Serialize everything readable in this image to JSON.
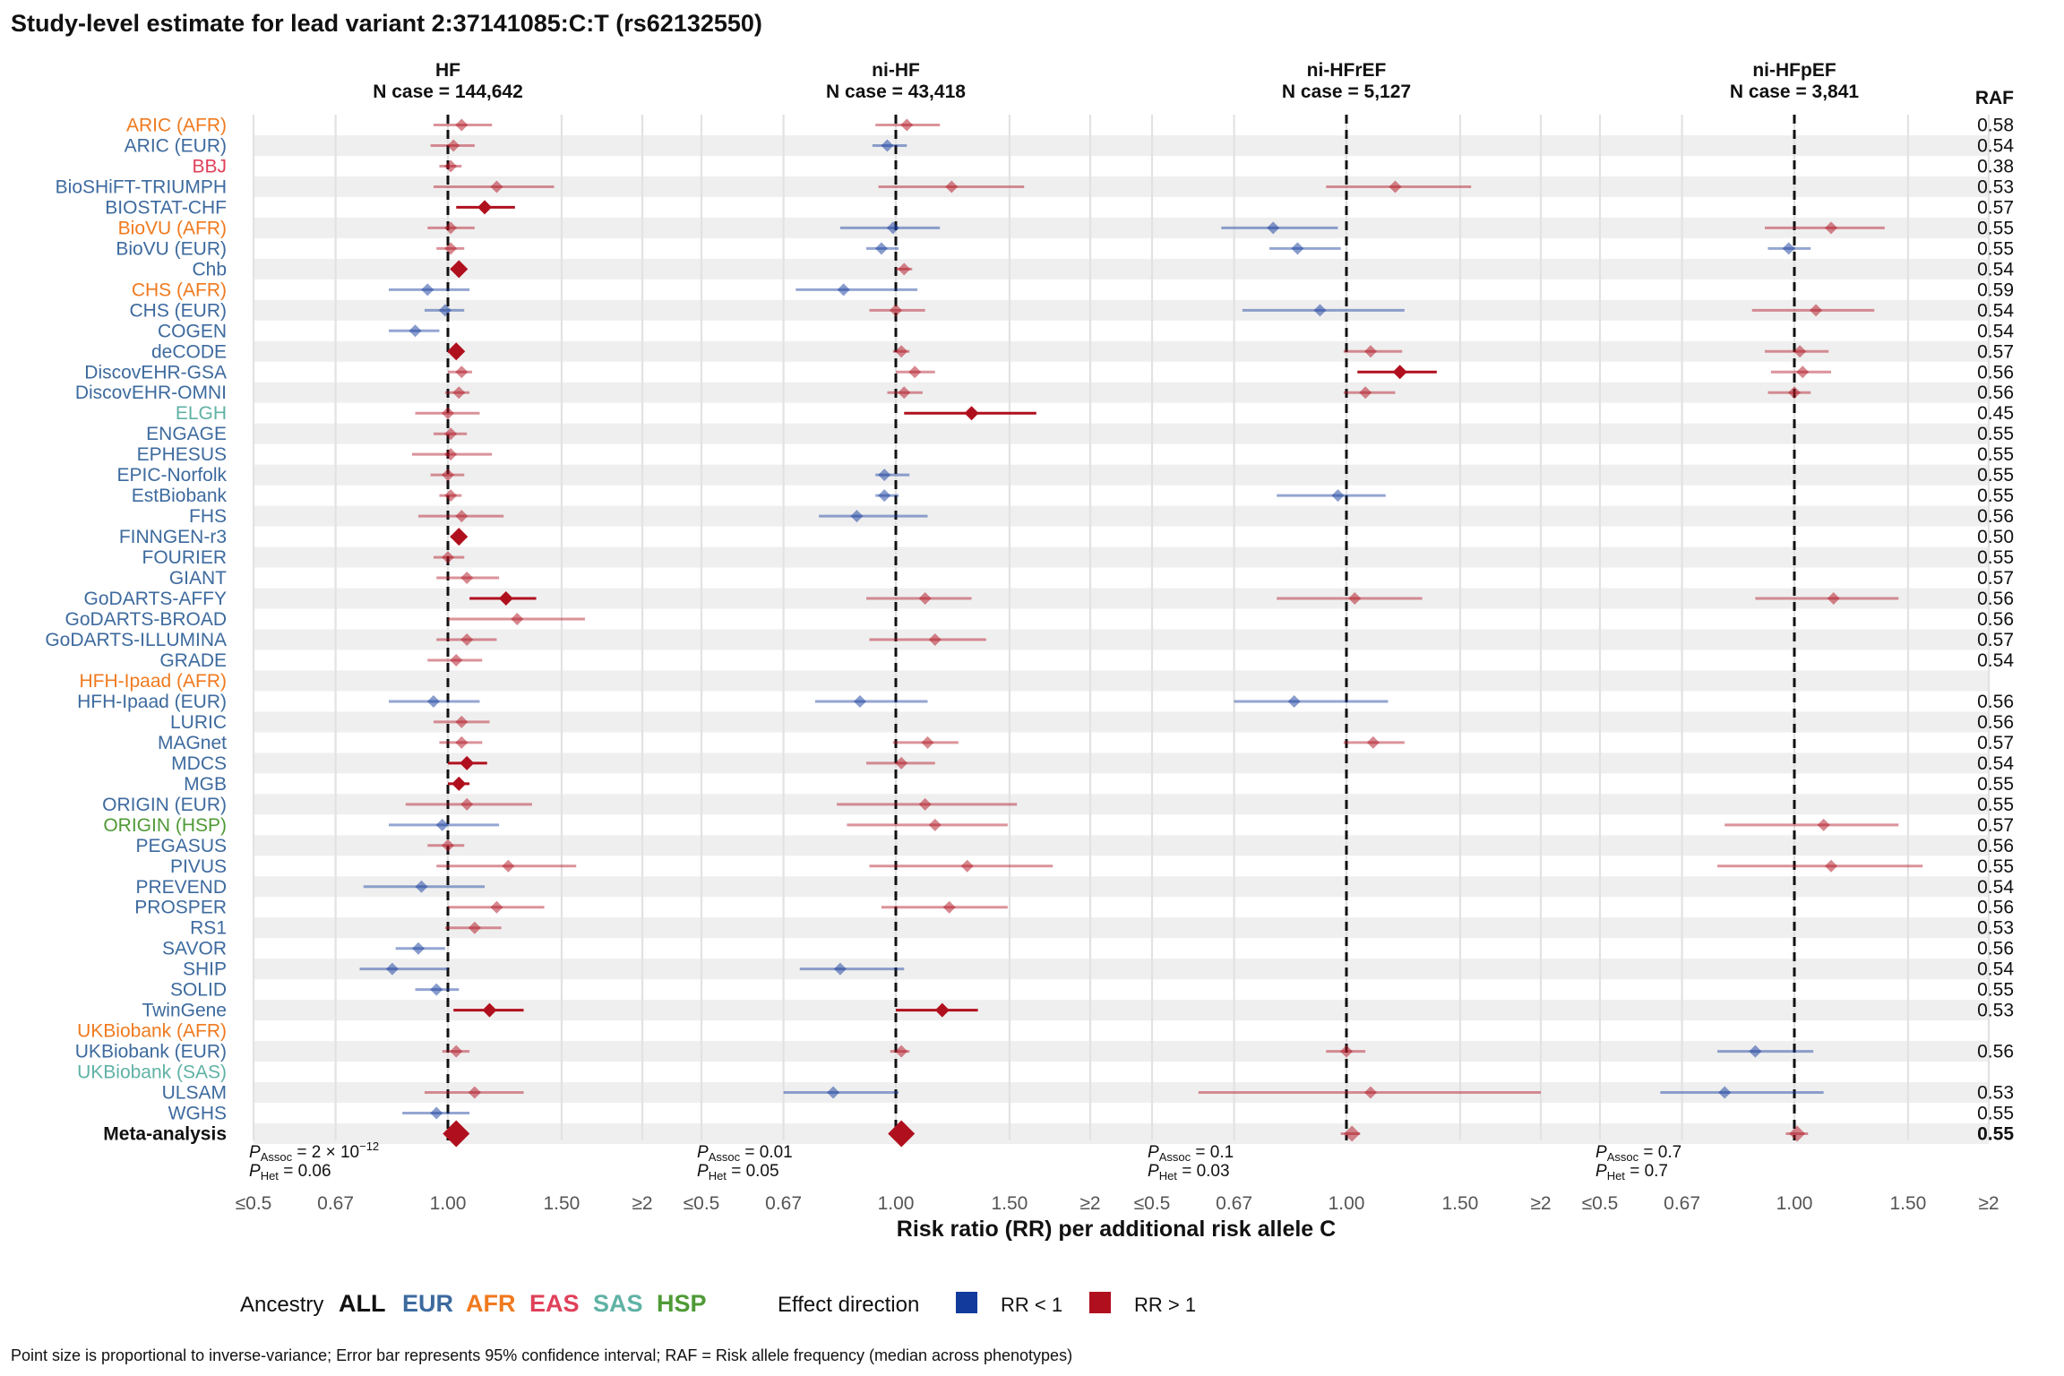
{
  "chart_data": {
    "type": "forest",
    "title": "Study-level estimate for lead variant 2:37141085:C:T (rs62132550)",
    "xlabel": "Risk ratio (RR) per additional risk allele C",
    "raf_header": "RAF",
    "x_scale": "log",
    "xlim": [
      0.5,
      2
    ],
    "reference_line": 1.0,
    "x_ticks": [
      {
        "value": 0.5,
        "label": "≤0.5"
      },
      {
        "value": 0.67,
        "label": "0.67"
      },
      {
        "value": 1.0,
        "label": "1.00"
      },
      {
        "value": 1.5,
        "label": "1.50"
      },
      {
        "value": 2.0,
        "label": "≥2"
      }
    ],
    "ancestry_colors": {
      "ALL": "#111111",
      "EUR": "#3d6a9e",
      "AFR": "#f07a1f",
      "EAS": "#e0405a",
      "SAS": "#5fb2a5",
      "HSP": "#4f9a36"
    },
    "direction_colors": {
      "lt1": "#123a9c",
      "gt1": "#b0101e"
    },
    "studies": [
      {
        "label": "ARIC (AFR)",
        "ancestry": "AFR",
        "raf": "0.58"
      },
      {
        "label": "ARIC (EUR)",
        "ancestry": "EUR",
        "raf": "0.54"
      },
      {
        "label": "BBJ",
        "ancestry": "EAS",
        "raf": "0.38"
      },
      {
        "label": "BioSHiFT-TRIUMPH",
        "ancestry": "EUR",
        "raf": "0.53"
      },
      {
        "label": "BIOSTAT-CHF",
        "ancestry": "EUR",
        "raf": "0.57"
      },
      {
        "label": "BioVU (AFR)",
        "ancestry": "AFR",
        "raf": "0.55"
      },
      {
        "label": "BioVU (EUR)",
        "ancestry": "EUR",
        "raf": "0.55"
      },
      {
        "label": "Chb",
        "ancestry": "EUR",
        "raf": "0.54"
      },
      {
        "label": "CHS (AFR)",
        "ancestry": "AFR",
        "raf": "0.59"
      },
      {
        "label": "CHS (EUR)",
        "ancestry": "EUR",
        "raf": "0.54"
      },
      {
        "label": "COGEN",
        "ancestry": "EUR",
        "raf": "0.54"
      },
      {
        "label": "deCODE",
        "ancestry": "EUR",
        "raf": "0.57"
      },
      {
        "label": "DiscovEHR-GSA",
        "ancestry": "EUR",
        "raf": "0.56"
      },
      {
        "label": "DiscovEHR-OMNI",
        "ancestry": "EUR",
        "raf": "0.56"
      },
      {
        "label": "ELGH",
        "ancestry": "SAS",
        "raf": "0.45"
      },
      {
        "label": "ENGAGE",
        "ancestry": "EUR",
        "raf": "0.55"
      },
      {
        "label": "EPHESUS",
        "ancestry": "EUR",
        "raf": "0.55"
      },
      {
        "label": "EPIC-Norfolk",
        "ancestry": "EUR",
        "raf": "0.55"
      },
      {
        "label": "EstBiobank",
        "ancestry": "EUR",
        "raf": "0.55"
      },
      {
        "label": "FHS",
        "ancestry": "EUR",
        "raf": "0.56"
      },
      {
        "label": "FINNGEN-r3",
        "ancestry": "EUR",
        "raf": "0.50"
      },
      {
        "label": "FOURIER",
        "ancestry": "EUR",
        "raf": "0.55"
      },
      {
        "label": "GIANT",
        "ancestry": "EUR",
        "raf": "0.57"
      },
      {
        "label": "GoDARTS-AFFY",
        "ancestry": "EUR",
        "raf": "0.56"
      },
      {
        "label": "GoDARTS-BROAD",
        "ancestry": "EUR",
        "raf": "0.56"
      },
      {
        "label": "GoDARTS-ILLUMINA",
        "ancestry": "EUR",
        "raf": "0.57"
      },
      {
        "label": "GRADE",
        "ancestry": "EUR",
        "raf": "0.54"
      },
      {
        "label": "HFH-Ipaad (AFR)",
        "ancestry": "AFR",
        "raf": ""
      },
      {
        "label": "HFH-Ipaad (EUR)",
        "ancestry": "EUR",
        "raf": "0.56"
      },
      {
        "label": "LURIC",
        "ancestry": "EUR",
        "raf": "0.56"
      },
      {
        "label": "MAGnet",
        "ancestry": "EUR",
        "raf": "0.57"
      },
      {
        "label": "MDCS",
        "ancestry": "EUR",
        "raf": "0.54"
      },
      {
        "label": "MGB",
        "ancestry": "EUR",
        "raf": "0.55"
      },
      {
        "label": "ORIGIN (EUR)",
        "ancestry": "EUR",
        "raf": "0.55"
      },
      {
        "label": "ORIGIN (HSP)",
        "ancestry": "HSP",
        "raf": "0.57"
      },
      {
        "label": "PEGASUS",
        "ancestry": "EUR",
        "raf": "0.56"
      },
      {
        "label": "PIVUS",
        "ancestry": "EUR",
        "raf": "0.55"
      },
      {
        "label": "PREVEND",
        "ancestry": "EUR",
        "raf": "0.54"
      },
      {
        "label": "PROSPER",
        "ancestry": "EUR",
        "raf": "0.56"
      },
      {
        "label": "RS1",
        "ancestry": "EUR",
        "raf": "0.53"
      },
      {
        "label": "SAVOR",
        "ancestry": "EUR",
        "raf": "0.56"
      },
      {
        "label": "SHIP",
        "ancestry": "EUR",
        "raf": "0.54"
      },
      {
        "label": "SOLID",
        "ancestry": "EUR",
        "raf": "0.55"
      },
      {
        "label": "TwinGene",
        "ancestry": "EUR",
        "raf": "0.53"
      },
      {
        "label": "UKBiobank (AFR)",
        "ancestry": "AFR",
        "raf": ""
      },
      {
        "label": "UKBiobank (EUR)",
        "ancestry": "EUR",
        "raf": "0.56"
      },
      {
        "label": "UKBiobank (SAS)",
        "ancestry": "SAS",
        "raf": ""
      },
      {
        "label": "ULSAM",
        "ancestry": "EUR",
        "raf": "0.53"
      },
      {
        "label": "WGHS",
        "ancestry": "EUR",
        "raf": "0.55"
      },
      {
        "label": "Meta-analysis",
        "ancestry": "ALL",
        "raf": "0.55"
      }
    ],
    "panels": [
      {
        "name": "HF",
        "ncase": "N case = 144,642",
        "p_assoc_label": "Assoc",
        "p_assoc_value": " = 2 × 10",
        "p_assoc_exp": "−12",
        "p_het_label": "Het",
        "p_het_value": " = 0.06",
        "estimates": [
          [
            1.05,
            0.95,
            1.17,
            1
          ],
          [
            1.02,
            0.94,
            1.1,
            1
          ],
          [
            1.01,
            0.97,
            1.05,
            1
          ],
          [
            1.19,
            0.95,
            1.46,
            1
          ],
          [
            1.14,
            1.03,
            1.27,
            3
          ],
          [
            1.01,
            0.93,
            1.1,
            1
          ],
          [
            1.01,
            0.96,
            1.06,
            1
          ],
          [
            1.04,
            1.01,
            1.06,
            4
          ],
          [
            0.93,
            0.81,
            1.08,
            1
          ],
          [
            0.99,
            0.92,
            1.06,
            1
          ],
          [
            0.89,
            0.81,
            0.97,
            1
          ],
          [
            1.03,
            1.0,
            1.05,
            4
          ],
          [
            1.05,
            1.0,
            1.09,
            1
          ],
          [
            1.04,
            0.99,
            1.08,
            1
          ],
          [
            1.0,
            0.89,
            1.12,
            1
          ],
          [
            1.01,
            0.95,
            1.07,
            1
          ],
          [
            1.01,
            0.88,
            1.17,
            1
          ],
          [
            1.0,
            0.94,
            1.06,
            1
          ],
          [
            1.01,
            0.97,
            1.05,
            1
          ],
          [
            1.05,
            0.9,
            1.22,
            1
          ],
          [
            1.04,
            1.01,
            1.06,
            4
          ],
          [
            1.0,
            0.95,
            1.06,
            1
          ],
          [
            1.07,
            0.96,
            1.2,
            1
          ],
          [
            1.23,
            1.08,
            1.37,
            3
          ],
          [
            1.28,
            1.0,
            1.63,
            1
          ],
          [
            1.07,
            0.96,
            1.19,
            1
          ],
          [
            1.03,
            0.93,
            1.13,
            1
          ],
          null,
          [
            0.95,
            0.81,
            1.12,
            1
          ],
          [
            1.05,
            0.95,
            1.16,
            1
          ],
          [
            1.05,
            0.97,
            1.13,
            1
          ],
          [
            1.07,
            1.0,
            1.15,
            3
          ],
          [
            1.04,
            1.0,
            1.08,
            3
          ],
          [
            1.07,
            0.86,
            1.35,
            1
          ],
          [
            0.98,
            0.81,
            1.2,
            1
          ],
          [
            1.0,
            0.93,
            1.06,
            1
          ],
          [
            1.24,
            0.96,
            1.58,
            1
          ],
          [
            0.91,
            0.74,
            1.14,
            1
          ],
          [
            1.19,
            1.0,
            1.41,
            1
          ],
          [
            1.1,
            0.99,
            1.21,
            1
          ],
          [
            0.9,
            0.83,
            0.99,
            1
          ],
          [
            0.82,
            0.73,
            1.0,
            1
          ],
          [
            0.96,
            0.89,
            1.04,
            1
          ],
          [
            1.16,
            1.02,
            1.31,
            3
          ],
          null,
          [
            1.03,
            0.98,
            1.08,
            1
          ],
          null,
          [
            1.1,
            0.92,
            1.31,
            1
          ],
          [
            0.96,
            0.85,
            1.08,
            1
          ],
          [
            1.03,
            1.01,
            1.05,
            5
          ]
        ]
      },
      {
        "name": "ni-HF",
        "ncase": "N case = 43,418",
        "p_assoc_label": "Assoc",
        "p_assoc_value": " = 0.01",
        "p_assoc_exp": "",
        "p_het_label": "Het",
        "p_het_value": " = 0.05",
        "estimates": [
          [
            1.04,
            0.93,
            1.17,
            1
          ],
          [
            0.97,
            0.92,
            1.04,
            1
          ],
          null,
          [
            1.22,
            0.94,
            1.58,
            1
          ],
          null,
          [
            0.99,
            0.82,
            1.17,
            1
          ],
          [
            0.95,
            0.9,
            1.01,
            1
          ],
          [
            1.03,
            1.0,
            1.06,
            1
          ],
          [
            0.83,
            0.7,
            1.08,
            1
          ],
          [
            1.0,
            0.91,
            1.11,
            1
          ],
          null,
          [
            1.02,
            0.99,
            1.05,
            1
          ],
          [
            1.07,
            1.0,
            1.15,
            1
          ],
          [
            1.03,
            0.97,
            1.1,
            1
          ],
          [
            1.31,
            1.03,
            1.65,
            3
          ],
          null,
          null,
          [
            0.96,
            0.93,
            1.05,
            1
          ],
          [
            0.96,
            0.93,
            1.01,
            1
          ],
          [
            0.87,
            0.76,
            1.12,
            1
          ],
          null,
          null,
          null,
          [
            1.11,
            0.9,
            1.31,
            1
          ],
          null,
          [
            1.15,
            0.91,
            1.38,
            1
          ],
          null,
          null,
          [
            0.88,
            0.75,
            1.12,
            1
          ],
          null,
          [
            1.12,
            0.99,
            1.25,
            1
          ],
          [
            1.02,
            0.9,
            1.15,
            1
          ],
          null,
          [
            1.11,
            0.81,
            1.54,
            1
          ],
          [
            1.15,
            0.84,
            1.49,
            1
          ],
          null,
          [
            1.29,
            0.91,
            1.75,
            1
          ],
          null,
          [
            1.21,
            0.95,
            1.49,
            1
          ],
          null,
          null,
          [
            0.82,
            0.71,
            1.03,
            1
          ],
          null,
          [
            1.18,
            1.0,
            1.34,
            3
          ],
          null,
          [
            1.02,
            0.98,
            1.05,
            1
          ],
          null,
          [
            0.8,
            0.67,
            1.01,
            1
          ],
          null,
          [
            1.02,
            1.0,
            1.04,
            5
          ]
        ]
      },
      {
        "name": "ni-HFrEF",
        "ncase": "N case = 5,127",
        "p_assoc_label": "Assoc",
        "p_assoc_value": " = 0.1",
        "p_assoc_exp": "",
        "p_het_label": "Het",
        "p_het_value": " = 0.03",
        "estimates": [
          null,
          null,
          null,
          [
            1.19,
            0.93,
            1.56,
            1
          ],
          null,
          [
            0.77,
            0.64,
            0.97,
            1
          ],
          [
            0.84,
            0.76,
            0.98,
            1
          ],
          null,
          null,
          [
            0.91,
            0.69,
            1.23,
            1
          ],
          null,
          [
            1.09,
            0.99,
            1.22,
            1
          ],
          [
            1.21,
            1.04,
            1.38,
            3
          ],
          [
            1.07,
            0.99,
            1.19,
            1
          ],
          null,
          null,
          null,
          null,
          [
            0.97,
            0.78,
            1.15,
            1
          ],
          null,
          null,
          null,
          null,
          [
            1.03,
            0.78,
            1.31,
            1
          ],
          null,
          null,
          null,
          null,
          [
            0.83,
            0.67,
            1.16,
            1
          ],
          null,
          [
            1.1,
            0.99,
            1.23,
            1
          ],
          null,
          null,
          null,
          null,
          null,
          null,
          null,
          null,
          null,
          null,
          null,
          null,
          null,
          null,
          [
            1.0,
            0.93,
            1.07,
            1
          ],
          null,
          [
            1.09,
            0.59,
            2.0,
            1
          ],
          null,
          [
            1.02,
            0.98,
            1.05,
            2
          ]
        ]
      },
      {
        "name": "ni-HFpEF",
        "ncase": "N case = 3,841",
        "p_assoc_label": "Assoc",
        "p_assoc_value": " = 0.7",
        "p_assoc_exp": "",
        "p_het_label": "Het",
        "p_het_value": " = 0.7",
        "estimates": [
          null,
          null,
          null,
          null,
          null,
          [
            1.14,
            0.9,
            1.38,
            1
          ],
          [
            0.98,
            0.91,
            1.06,
            1
          ],
          null,
          null,
          [
            1.08,
            0.86,
            1.33,
            1
          ],
          null,
          [
            1.02,
            0.9,
            1.13,
            1
          ],
          [
            1.03,
            0.92,
            1.14,
            1
          ],
          [
            1.0,
            0.91,
            1.06,
            1
          ],
          null,
          null,
          null,
          null,
          null,
          null,
          null,
          null,
          null,
          [
            1.15,
            0.87,
            1.45,
            1
          ],
          null,
          null,
          null,
          null,
          null,
          null,
          null,
          null,
          null,
          null,
          [
            1.11,
            0.78,
            1.45,
            1
          ],
          null,
          [
            1.14,
            0.76,
            1.58,
            1
          ],
          null,
          null,
          null,
          null,
          null,
          null,
          null,
          null,
          [
            0.87,
            0.76,
            1.07,
            1
          ],
          null,
          [
            0.78,
            0.62,
            1.11,
            1
          ],
          null,
          [
            1.01,
            0.97,
            1.05,
            2
          ]
        ]
      }
    ],
    "legend": {
      "ancestry_title": "Ancestry",
      "ancestry_items": [
        "ALL",
        "EUR",
        "AFR",
        "EAS",
        "SAS",
        "HSP"
      ],
      "direction_title": "Effect direction",
      "direction_items": [
        {
          "key": "lt1",
          "label": "RR < 1"
        },
        {
          "key": "gt1",
          "label": "RR > 1"
        }
      ]
    },
    "footnote": "Point size is proportional to inverse-variance; Error bar represents 95% confidence interval; RAF = Risk allele frequency (median across phenotypes)"
  }
}
